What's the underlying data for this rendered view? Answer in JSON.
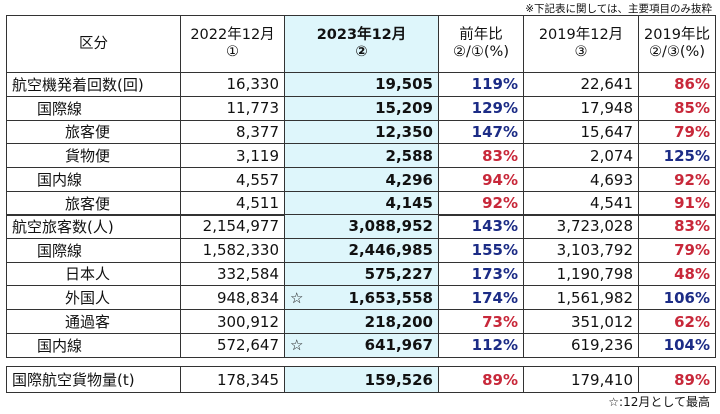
{
  "note_top": "※下記表に関しては、主要項目のみ抜粋",
  "note_bottom": "☆:12月として最高",
  "headers": [
    {
      "line1": "区分",
      "line2": ""
    },
    {
      "line1": "2022年12月",
      "line2": "①"
    },
    {
      "line1": "2023年12月",
      "line2": "②"
    },
    {
      "line1": "前年比",
      "line2": "②/①(%)"
    },
    {
      "line1": "2019年12月",
      "line2": "③"
    },
    {
      "line1": "2019年比",
      "line2": "②/③(%)"
    }
  ],
  "section1": [
    {
      "label": "航空機発着回数(回)",
      "indent": 0,
      "v2022": "16,330",
      "star": "",
      "v2023": "19,505",
      "yoy": "119%",
      "yoy_dir": "up",
      "v2019": "22,641",
      "vs2019": "86%",
      "vs2019_dir": "down"
    },
    {
      "label": "国際線",
      "indent": 1,
      "v2022": "11,773",
      "star": "",
      "v2023": "15,209",
      "yoy": "129%",
      "yoy_dir": "up",
      "v2019": "17,948",
      "vs2019": "85%",
      "vs2019_dir": "down"
    },
    {
      "label": "旅客便",
      "indent": 2,
      "v2022": "8,377",
      "star": "",
      "v2023": "12,350",
      "yoy": "147%",
      "yoy_dir": "up",
      "v2019": "15,647",
      "vs2019": "79%",
      "vs2019_dir": "down"
    },
    {
      "label": "貨物便",
      "indent": 2,
      "v2022": "3,119",
      "star": "",
      "v2023": "2,588",
      "yoy": "83%",
      "yoy_dir": "down",
      "v2019": "2,074",
      "vs2019": "125%",
      "vs2019_dir": "up"
    },
    {
      "label": "国内線",
      "indent": 1,
      "v2022": "4,557",
      "star": "",
      "v2023": "4,296",
      "yoy": "94%",
      "yoy_dir": "down",
      "v2019": "4,693",
      "vs2019": "92%",
      "vs2019_dir": "down"
    },
    {
      "label": "旅客便",
      "indent": 2,
      "v2022": "4,511",
      "star": "",
      "v2023": "4,145",
      "yoy": "92%",
      "yoy_dir": "down",
      "v2019": "4,541",
      "vs2019": "91%",
      "vs2019_dir": "down"
    }
  ],
  "section2": [
    {
      "label": "航空旅客数(人)",
      "indent": 0,
      "v2022": "2,154,977",
      "star": "",
      "v2023": "3,088,952",
      "yoy": "143%",
      "yoy_dir": "up",
      "v2019": "3,723,028",
      "vs2019": "83%",
      "vs2019_dir": "down"
    },
    {
      "label": "国際線",
      "indent": 1,
      "v2022": "1,582,330",
      "star": "",
      "v2023": "2,446,985",
      "yoy": "155%",
      "yoy_dir": "up",
      "v2019": "3,103,792",
      "vs2019": "79%",
      "vs2019_dir": "down"
    },
    {
      "label": "日本人",
      "indent": 2,
      "v2022": "332,584",
      "star": "",
      "v2023": "575,227",
      "yoy": "173%",
      "yoy_dir": "up",
      "v2019": "1,190,798",
      "vs2019": "48%",
      "vs2019_dir": "down"
    },
    {
      "label": "外国人",
      "indent": 2,
      "v2022": "948,834",
      "star": "☆",
      "v2023": "1,653,558",
      "yoy": "174%",
      "yoy_dir": "up",
      "v2019": "1,561,982",
      "vs2019": "106%",
      "vs2019_dir": "up"
    },
    {
      "label": "通過客",
      "indent": 2,
      "v2022": "300,912",
      "star": "",
      "v2023": "218,200",
      "yoy": "73%",
      "yoy_dir": "down",
      "v2019": "351,012",
      "vs2019": "62%",
      "vs2019_dir": "down"
    },
    {
      "label": "国内線",
      "indent": 1,
      "v2022": "572,647",
      "star": "☆",
      "v2023": "641,967",
      "yoy": "112%",
      "yoy_dir": "up",
      "v2019": "619,236",
      "vs2019": "104%",
      "vs2019_dir": "up"
    }
  ],
  "section3": [
    {
      "label": "国際航空貨物量(t)",
      "indent": 0,
      "v2022": "178,345",
      "star": "",
      "v2023": "159,526",
      "yoy": "89%",
      "yoy_dir": "down",
      "v2019": "179,410",
      "vs2019": "89%",
      "vs2019_dir": "down"
    }
  ]
}
